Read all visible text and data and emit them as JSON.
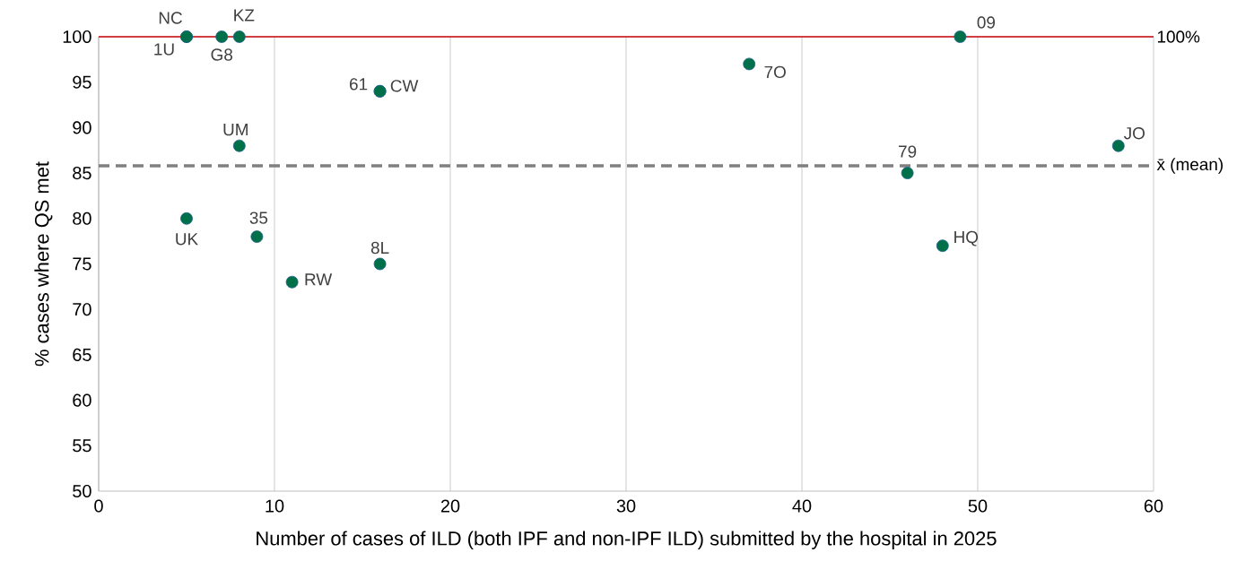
{
  "chart_data": {
    "type": "scatter",
    "xlabel": "Number of cases of ILD (both IPF and non-IPF ILD) submitted by the hospital in 2025",
    "ylabel": "% cases where QS met",
    "x": [
      5,
      5,
      7,
      8,
      16,
      16,
      8,
      5,
      9,
      11,
      16,
      37,
      49,
      46,
      48,
      58
    ],
    "values": [
      100,
      100,
      100,
      100,
      94,
      94,
      88,
      80,
      78,
      73,
      75,
      97,
      100,
      85,
      77,
      88
    ],
    "color": "#00704a",
    "marker": "circle",
    "xlim": [
      0,
      60
    ],
    "xticks": [
      0,
      10,
      20,
      30,
      40,
      50,
      60
    ],
    "ylim": [
      50,
      100
    ],
    "yticks": [
      50,
      55,
      60,
      65,
      70,
      75,
      80,
      85,
      90,
      95,
      100
    ],
    "grid": "x",
    "ref_lines": [
      {
        "axis": "y",
        "value": 100,
        "label": "100%",
        "color": "#c00000",
        "line_style": "solid"
      },
      {
        "axis": "y",
        "value": 85.8,
        "label": "x̄ (mean)",
        "color": "#808080",
        "line_style": "dashed"
      }
    ],
    "annotations": [
      {
        "text": "NC",
        "x": 5,
        "y": 100
      },
      {
        "text": "1U",
        "x": 5,
        "y": 100
      },
      {
        "text": "G8",
        "x": 7,
        "y": 100
      },
      {
        "text": "KZ",
        "x": 8,
        "y": 100
      },
      {
        "text": "61",
        "x": 16,
        "y": 94
      },
      {
        "text": "CW",
        "x": 16,
        "y": 94
      },
      {
        "text": "UM",
        "x": 8,
        "y": 88
      },
      {
        "text": "UK",
        "x": 5,
        "y": 80
      },
      {
        "text": "35",
        "x": 9,
        "y": 78
      },
      {
        "text": "RW",
        "x": 11,
        "y": 73
      },
      {
        "text": "8L",
        "x": 16,
        "y": 75
      },
      {
        "text": "7O",
        "x": 37,
        "y": 97
      },
      {
        "text": "09",
        "x": 49,
        "y": 100
      },
      {
        "text": "79",
        "x": 46,
        "y": 85
      },
      {
        "text": "HQ",
        "x": 48,
        "y": 77
      },
      {
        "text": "JO",
        "x": 58,
        "y": 88
      }
    ]
  }
}
